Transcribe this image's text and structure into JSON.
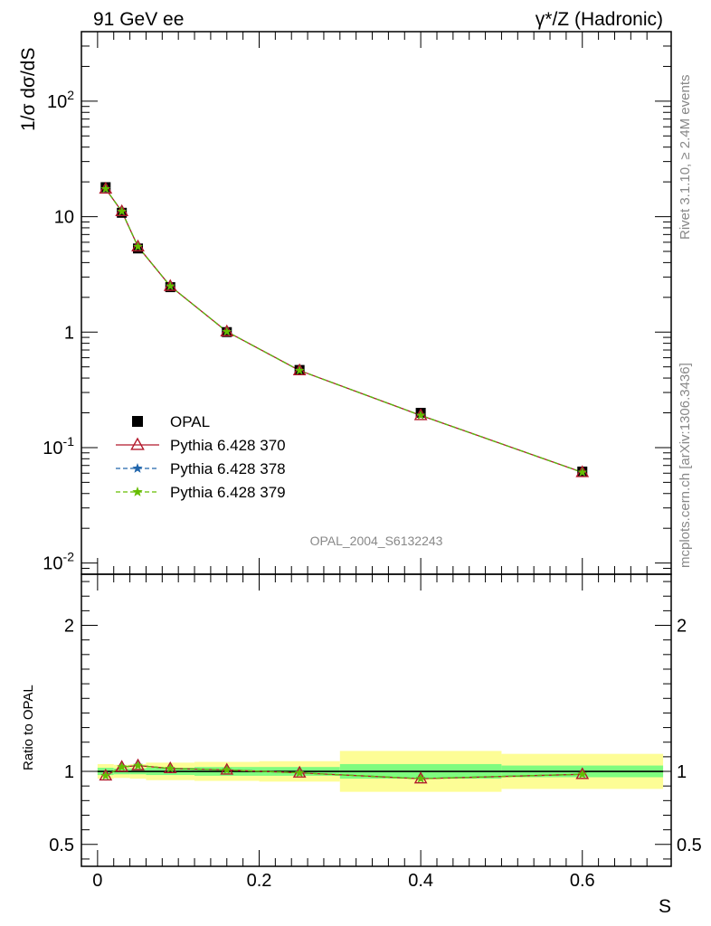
{
  "header": {
    "left": "91 GeV ee",
    "right": "γ*/Z (Hadronic)"
  },
  "side_text": {
    "rivet": "Rivet 3.1.10, ≥ 2.4M events",
    "mcplots": "mcplots.cern.ch [arXiv:1306.3436]"
  },
  "analysis_id": "OPAL_2004_S6132243",
  "colors": {
    "data": "#000000",
    "py370": "#b2182b",
    "py378": "#2166ac",
    "py379": "#66bd00",
    "band_inner": "#7ffc7f",
    "band_outer": "#fdfd96"
  },
  "chart_data": [
    {
      "type": "line",
      "title": "",
      "ylabel": "1/σ dσ/dS",
      "yscale": "log",
      "ylim": [
        0.008,
        400
      ],
      "xlim": [
        -0.02,
        0.71
      ],
      "ytick_labels": [
        "10^-2",
        "10^-1",
        "1",
        "10",
        "10^2"
      ],
      "legend_position": "middle-left",
      "x": [
        0.01,
        0.03,
        0.05,
        0.09,
        0.16,
        0.25,
        0.4,
        0.6
      ],
      "series": [
        {
          "name": "OPAL",
          "marker": "square",
          "values": [
            18.0,
            10.8,
            5.3,
            2.45,
            1.0,
            0.47,
            0.2,
            0.062
          ]
        },
        {
          "name": "Pythia 6.428 370",
          "marker": "triangle",
          "values": [
            17.4,
            11.1,
            5.5,
            2.5,
            1.01,
            0.465,
            0.19,
            0.061
          ]
        },
        {
          "name": "Pythia 6.428 378",
          "marker": "star",
          "values": [
            17.4,
            11.1,
            5.5,
            2.5,
            1.01,
            0.465,
            0.19,
            0.061
          ]
        },
        {
          "name": "Pythia 6.428 379",
          "marker": "star",
          "values": [
            17.4,
            11.1,
            5.5,
            2.5,
            1.01,
            0.465,
            0.19,
            0.061
          ]
        }
      ]
    },
    {
      "type": "line",
      "ylabel": "Ratio to OPAL",
      "xlabel": "S",
      "ylim": [
        0.35,
        2.35
      ],
      "xlim": [
        -0.02,
        0.71
      ],
      "ytick_labels": [
        "0.5",
        "1",
        "2"
      ],
      "xtick_labels": [
        "0",
        "0.2",
        "0.4",
        "0.6"
      ],
      "bins": [
        [
          0.0,
          0.02
        ],
        [
          0.02,
          0.04
        ],
        [
          0.04,
          0.06
        ],
        [
          0.06,
          0.12
        ],
        [
          0.12,
          0.2
        ],
        [
          0.2,
          0.3
        ],
        [
          0.3,
          0.5
        ],
        [
          0.5,
          0.7
        ]
      ],
      "band_inner": [
        0.025,
        0.02,
        0.02,
        0.025,
        0.03,
        0.03,
        0.05,
        0.04
      ],
      "band_outer": [
        0.05,
        0.045,
        0.05,
        0.06,
        0.065,
        0.07,
        0.14,
        0.12
      ],
      "x": [
        0.01,
        0.03,
        0.05,
        0.09,
        0.16,
        0.25,
        0.4,
        0.6
      ],
      "series": [
        {
          "name": "Pythia 6.428 370",
          "values": [
            0.97,
            1.03,
            1.04,
            1.02,
            1.01,
            0.99,
            0.95,
            0.98
          ]
        },
        {
          "name": "Pythia 6.428 378",
          "values": [
            0.97,
            1.03,
            1.04,
            1.02,
            1.01,
            0.99,
            0.95,
            0.98
          ]
        },
        {
          "name": "Pythia 6.428 379",
          "values": [
            0.97,
            1.03,
            1.04,
            1.02,
            1.01,
            0.99,
            0.95,
            0.98
          ]
        }
      ]
    }
  ]
}
